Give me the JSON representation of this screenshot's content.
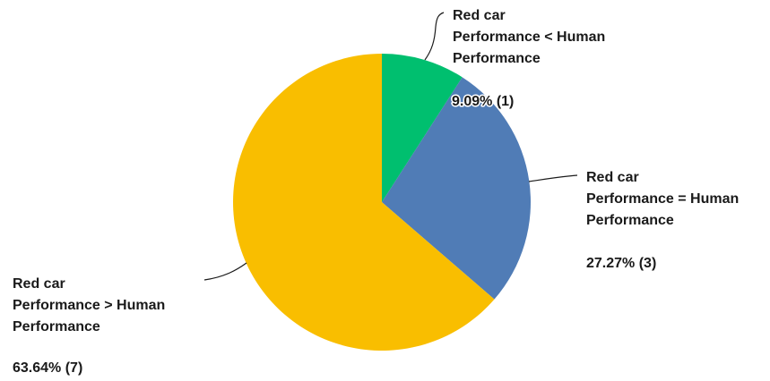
{
  "chart_data": {
    "type": "pie",
    "title": "",
    "slices": [
      {
        "label_lines": [
          "Red car",
          "Performance < Human",
          "Performance"
        ],
        "value": 9.09,
        "count": 1,
        "value_text": "9.09% (1)",
        "color": "#00bf6f"
      },
      {
        "label_lines": [
          "Red car",
          "Performance = Human",
          "Performance"
        ],
        "value": 27.27,
        "count": 3,
        "value_text": "27.27% (3)",
        "color": "#507cb6"
      },
      {
        "label_lines": [
          "Red car",
          "Performance > Human",
          "Performance"
        ],
        "value": 63.64,
        "count": 7,
        "value_text": "63.64% (7)",
        "color": "#f9be00"
      }
    ]
  }
}
